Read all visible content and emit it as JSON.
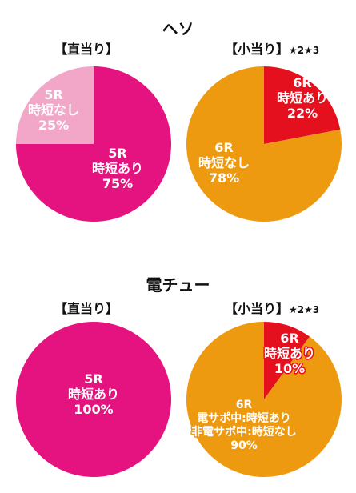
{
  "colors": {
    "magenta": "#e5137f",
    "pink_light": "#f2a6c8",
    "orange": "#ee9a10",
    "red": "#e5101e"
  },
  "sections": [
    {
      "title": "ヘソ"
    },
    {
      "title": "電チュー"
    }
  ],
  "chart_data": [
    {
      "type": "pie",
      "title": "【直当り】",
      "note": "",
      "slices": [
        {
          "lines": [
            "5R",
            "時短あり",
            "75%"
          ],
          "value": 75,
          "color": "#e5137f"
        },
        {
          "lines": [
            "5R",
            "時短なし",
            "25%"
          ],
          "value": 25,
          "color": "#f2a6c8"
        }
      ]
    },
    {
      "type": "pie",
      "title": "【小当り】",
      "note": "★2★3",
      "slices": [
        {
          "lines": [
            "6R",
            "時短あり",
            "22%"
          ],
          "value": 22,
          "color": "#e5101e"
        },
        {
          "lines": [
            "6R",
            "時短なし",
            "78%"
          ],
          "value": 78,
          "color": "#ee9a10"
        }
      ]
    },
    {
      "type": "pie",
      "title": "【直当り】",
      "note": "",
      "slices": [
        {
          "lines": [
            "5R",
            "時短あり",
            "100%"
          ],
          "value": 100,
          "color": "#e5137f"
        }
      ]
    },
    {
      "type": "pie",
      "title": "【小当り】",
      "note": "★2★3",
      "slices": [
        {
          "lines": [
            "6R",
            "時短あり",
            "10%"
          ],
          "value": 10,
          "color": "#e5101e"
        },
        {
          "lines": [
            "6R",
            "電サポ中:時短あり",
            "非電サポ中:時短なし",
            "90%"
          ],
          "value": 90,
          "color": "#ee9a10"
        }
      ]
    }
  ]
}
